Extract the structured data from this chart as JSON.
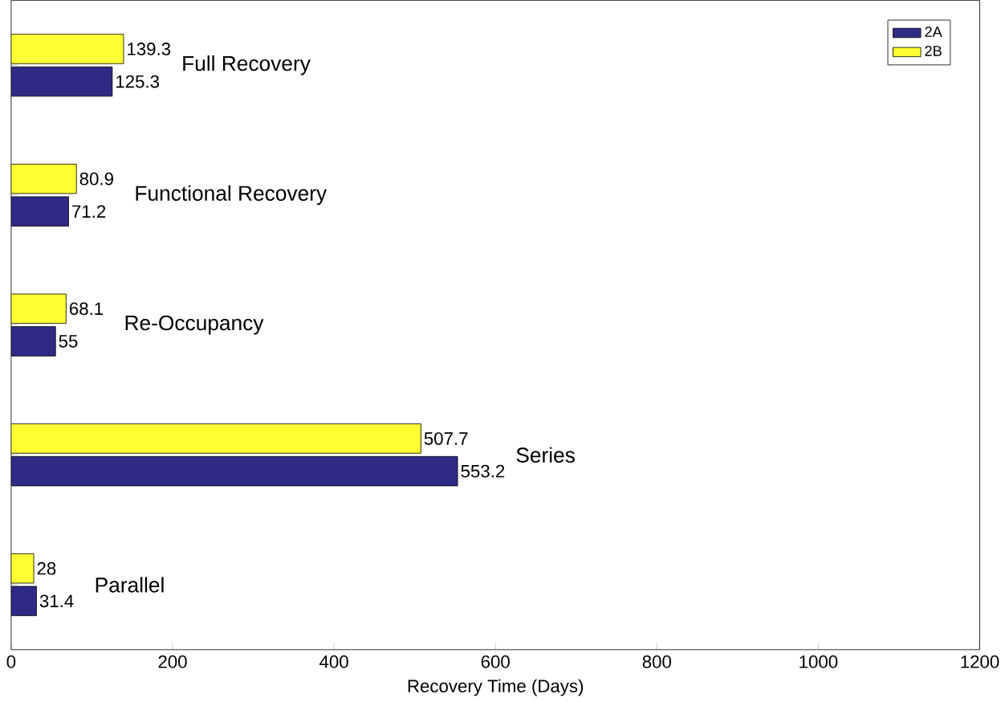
{
  "chart_data": {
    "type": "bar",
    "orientation": "horizontal",
    "xlabel": "Recovery Time (Days)",
    "categories": [
      "Full Recovery",
      "Functional Recovery",
      "Re-Occupancy",
      "Series",
      "Parallel"
    ],
    "series": [
      {
        "name": "2A",
        "color": "#2e2a85",
        "values": [
          125.3,
          71.2,
          55,
          553.2,
          31.4
        ]
      },
      {
        "name": "2B",
        "color": "#ffff33",
        "values": [
          139.3,
          80.9,
          68.1,
          507.7,
          28
        ]
      }
    ],
    "xlim": [
      0,
      1200
    ],
    "xticks": [
      0,
      200,
      400,
      600,
      800,
      1000,
      1200
    ],
    "data_labels": true,
    "legend": "top right",
    "grid": false
  }
}
